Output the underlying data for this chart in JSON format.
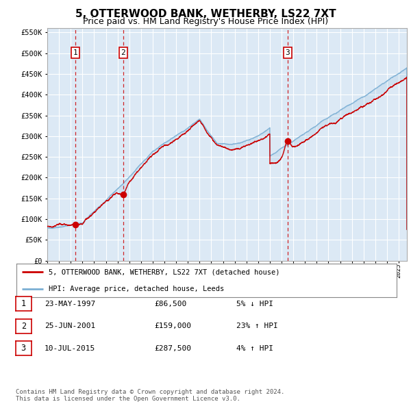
{
  "title": "5, OTTERWOOD BANK, WETHERBY, LS22 7XT",
  "subtitle": "Price paid vs. HM Land Registry's House Price Index (HPI)",
  "title_fontsize": 11,
  "subtitle_fontsize": 9,
  "background_color": "#ffffff",
  "plot_bg_color": "#dce9f5",
  "grid_color": "#ffffff",
  "sale_dates_num": [
    1997.39,
    2001.48,
    2015.52
  ],
  "sale_prices": [
    86500,
    159000,
    287500
  ],
  "sale_labels": [
    "1",
    "2",
    "3"
  ],
  "legend_line1": "5, OTTERWOOD BANK, WETHERBY, LS22 7XT (detached house)",
  "legend_line2": "HPI: Average price, detached house, Leeds",
  "table_rows": [
    [
      "1",
      "23-MAY-1997",
      "£86,500",
      "5% ↓ HPI"
    ],
    [
      "2",
      "25-JUN-2001",
      "£159,000",
      "23% ↑ HPI"
    ],
    [
      "3",
      "10-JUL-2015",
      "£287,500",
      "4% ↑ HPI"
    ]
  ],
  "footer": "Contains HM Land Registry data © Crown copyright and database right 2024.\nThis data is licensed under the Open Government Licence v3.0.",
  "red_line_color": "#cc0000",
  "blue_line_color": "#7bafd4",
  "dot_color": "#cc0000",
  "dashed_color": "#cc0000",
  "ylim": [
    0,
    560000
  ],
  "xlim_start": 1995.0,
  "xlim_end": 2025.7
}
